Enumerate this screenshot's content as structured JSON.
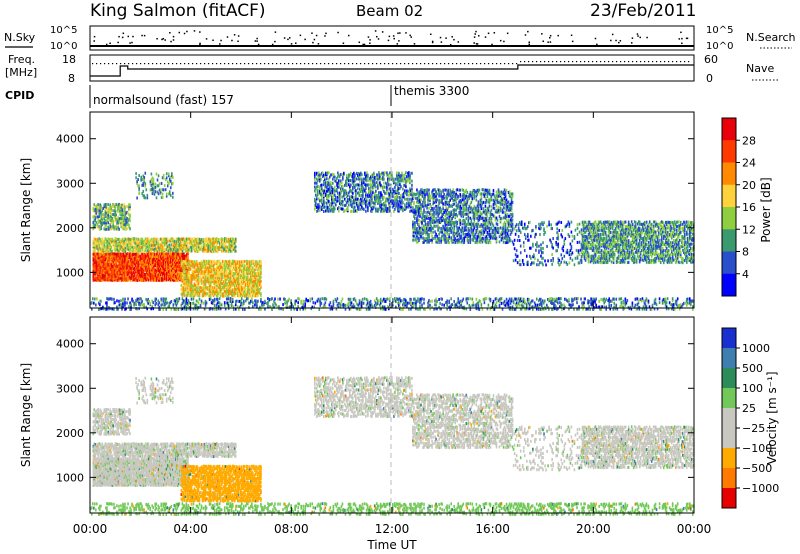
{
  "header": {
    "station": "King Salmon (fitACF)",
    "beam": "Beam 02",
    "date": "23/Feb/2011"
  },
  "top_panels": {
    "nsky_label": "N.Sky",
    "nsky_ticks": [
      "10^5",
      "10^0"
    ],
    "nsearch_label": "N.Search",
    "nsearch_ticks": [
      "10^5",
      "10^0"
    ],
    "freq_label_line1": "Freq.",
    "freq_label_line2": "[MHz]",
    "freq_ticks": [
      "18",
      "8"
    ],
    "nave_label": "Nave",
    "nave_ticks": [
      "60",
      "0"
    ],
    "cpid_label": "CPID",
    "cpid_segments": [
      {
        "label": "normalsound (fast) 157",
        "start_hour": 0
      },
      {
        "label": "themis 3300",
        "start_hour": 12
      }
    ]
  },
  "panels": {
    "power": {
      "ylabel": "Slant Range [km]",
      "yticks": [
        "4000",
        "3000",
        "2000",
        "1000"
      ],
      "colorbar_title": "Power [dB]",
      "colorbar_labels": [
        "28",
        "24",
        "20",
        "16",
        "12",
        "8",
        "4"
      ],
      "colorbar_colors": [
        "#e8000b",
        "#ff3a00",
        "#ff8a00",
        "#ffd23c",
        "#8fcf3f",
        "#3a9a6e",
        "#2a4fcc",
        "#0000ff"
      ]
    },
    "velocity": {
      "ylabel": "Slant Range [km]",
      "yticks": [
        "4000",
        "3000",
        "2000",
        "1000"
      ],
      "colorbar_title": "Velocity [m s⁻¹]",
      "colorbar_labels": [
        "1000",
        "500",
        "100",
        "25",
        "−25",
        "−100",
        "−500",
        "−1000"
      ],
      "colorbar_colors": [
        "#1a2fd0",
        "#3f7fb0",
        "#2e8c5a",
        "#73c85a",
        "#c8c8c0",
        "#c8c8c0",
        "#ffaa00",
        "#ff7a00",
        "#e60000"
      ]
    }
  },
  "xaxis": {
    "label": "Time UT",
    "ticks": [
      "00:00",
      "04:00",
      "08:00",
      "12:00",
      "16:00",
      "20:00",
      "00:00"
    ]
  },
  "chart_data": {
    "type": "heatmap",
    "title": "King Salmon (fitACF)  Beam 02  23/Feb/2011",
    "xlabel": "Time UT",
    "ylabel": "Slant Range [km]",
    "xlim_hours": [
      0,
      24
    ],
    "ylim_km": [
      200,
      4600
    ],
    "power_scale_db": [
      0,
      30
    ],
    "velocity_scale_ms": [
      -1000,
      1000
    ],
    "echo_regions": [
      {
        "t0": 0.1,
        "t1": 3.9,
        "r0": 850,
        "r1": 1500,
        "power_db": 24,
        "velocity": 0,
        "density": 0.9
      },
      {
        "t0": 0.1,
        "t1": 5.8,
        "r0": 1500,
        "r1": 1800,
        "power_db": 14,
        "velocity": 0,
        "density": 0.7
      },
      {
        "t0": 0.1,
        "t1": 1.6,
        "r0": 2000,
        "r1": 2600,
        "power_db": 10,
        "velocity": 0,
        "density": 0.55
      },
      {
        "t0": 1.8,
        "t1": 3.3,
        "r0": 2700,
        "r1": 3300,
        "power_db": 8,
        "velocity": 0,
        "density": 0.25
      },
      {
        "t0": 3.6,
        "t1": 6.8,
        "r0": 500,
        "r1": 1300,
        "power_db": 16,
        "velocity": -300,
        "density": 0.7
      },
      {
        "t0": 8.9,
        "t1": 12.8,
        "r0": 2400,
        "r1": 3300,
        "power_db": 6,
        "velocity": 0,
        "density": 0.45
      },
      {
        "t0": 12.8,
        "t1": 16.8,
        "r0": 1700,
        "r1": 2900,
        "power_db": 6,
        "velocity": 0,
        "density": 0.45
      },
      {
        "t0": 16.8,
        "t1": 19.5,
        "r0": 1200,
        "r1": 2200,
        "power_db": 5,
        "velocity": 0,
        "density": 0.15
      },
      {
        "t0": 19.5,
        "t1": 24.0,
        "r0": 1250,
        "r1": 2200,
        "power_db": 8,
        "velocity": 0,
        "density": 0.55
      },
      {
        "t0": 0.0,
        "t1": 24.0,
        "r0": 200,
        "r1": 450,
        "power_db": 6,
        "velocity": 60,
        "density": 0.3
      }
    ]
  }
}
